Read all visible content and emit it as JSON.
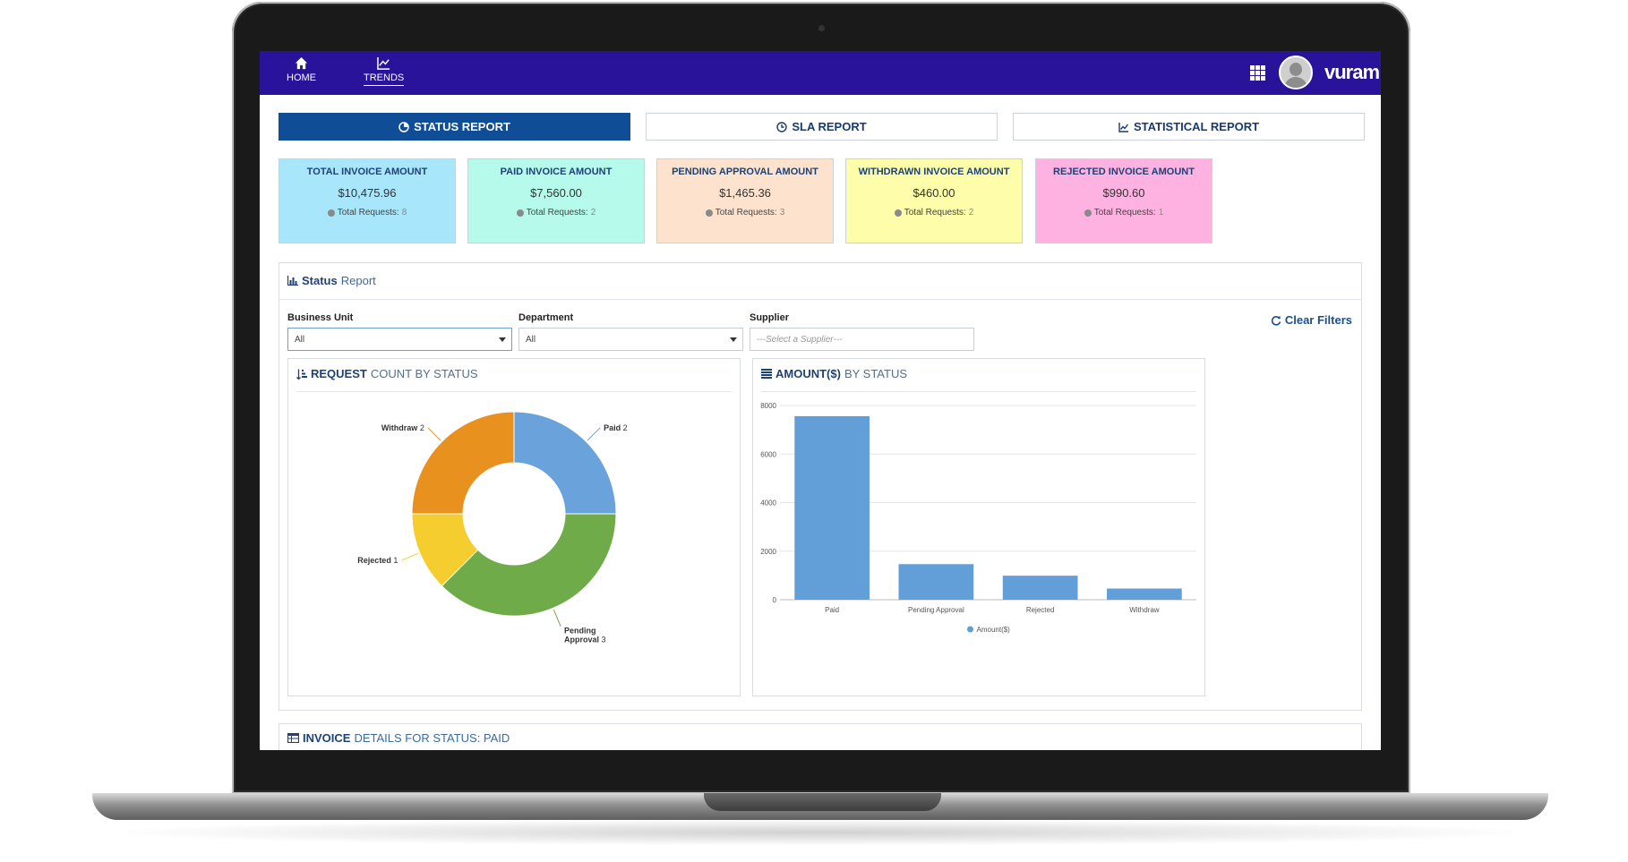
{
  "nav": {
    "home_label": "HOME",
    "trends_label": "TRENDS",
    "logo_text": "vuram"
  },
  "tabs": [
    {
      "label": "STATUS REPORT",
      "icon": "pie-icon",
      "active": true
    },
    {
      "label": "SLA REPORT",
      "icon": "clock-icon",
      "active": false
    },
    {
      "label": "STATISTICAL REPORT",
      "icon": "line-chart-icon",
      "active": false
    }
  ],
  "cards": [
    {
      "title": "TOTAL INVOICE AMOUNT",
      "amount": "$10,475.96",
      "req_label": "Total Requests:",
      "req_count": "8",
      "color": "#a8e6fb"
    },
    {
      "title": "PAID INVOICE AMOUNT",
      "amount": "$7,560.00",
      "req_label": "Total Requests:",
      "req_count": "2",
      "color": "#b5faea"
    },
    {
      "title": "PENDING APPROVAL AMOUNT",
      "amount": "$1,465.36",
      "req_label": "Total Requests:",
      "req_count": "3",
      "color": "#fde3cd"
    },
    {
      "title": "WITHDRAWN INVOICE AMOUNT",
      "amount": "$460.00",
      "req_label": "Total Requests:",
      "req_count": "2",
      "color": "#fefda9"
    },
    {
      "title": "REJECTED INVOICE AMOUNT",
      "amount": "$990.60",
      "req_label": "Total Requests:",
      "req_count": "1",
      "color": "#feb2e1"
    }
  ],
  "status_panel": {
    "title_bold": "Status",
    "title_rest": "Report",
    "filters": {
      "business_unit_label": "Business Unit",
      "business_unit_value": "All",
      "department_label": "Department",
      "department_value": "All",
      "supplier_label": "Supplier",
      "supplier_placeholder": "---Select a Supplier---",
      "clear_label": "Clear Filters"
    }
  },
  "chart_titles": {
    "donut_bold": "REQUEST",
    "donut_rest": "COUNT BY STATUS",
    "bar_bold": "AMOUNT($)",
    "bar_rest": "BY STATUS"
  },
  "invoice_section": {
    "bold": "INVOICE",
    "rest": "DETAILS FOR STATUS: PAID"
  },
  "chart_data": [
    {
      "type": "pie",
      "title": "REQUEST COUNT BY STATUS",
      "donut": true,
      "slices": [
        {
          "label": "Paid",
          "value": 2,
          "color": "#6aa3db"
        },
        {
          "label": "Pending Approval",
          "value": 3,
          "color": "#6fab48"
        },
        {
          "label": "Rejected",
          "value": 1,
          "color": "#f5cd2e"
        },
        {
          "label": "Withdraw",
          "value": 2,
          "color": "#e8911f"
        }
      ]
    },
    {
      "type": "bar",
      "title": "AMOUNT($) BY STATUS",
      "categories": [
        "Paid",
        "Pending Approval",
        "Rejected",
        "Withdraw"
      ],
      "series": [
        {
          "name": "Amount($)",
          "values": [
            7560.0,
            1465.36,
            990.6,
            460.0
          ],
          "color": "#629fd9"
        }
      ],
      "ylim": [
        0,
        8000
      ],
      "yticks": [
        "0",
        "2000",
        "4000",
        "6000",
        "8000"
      ],
      "grid": true,
      "legend": "bottom"
    }
  ]
}
